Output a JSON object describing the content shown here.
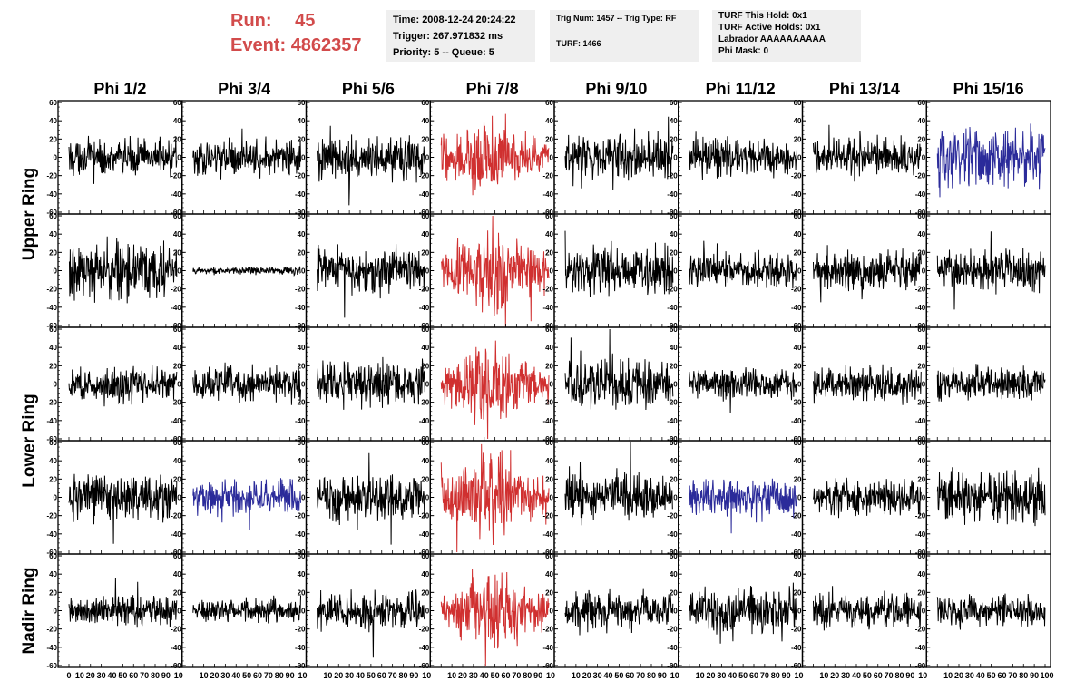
{
  "header": {
    "run_label": "Run:",
    "run_value": "45",
    "event_label": "Event:",
    "event_value": "4862357",
    "box1": [
      "Time: 2008-12-24 20:24:22",
      "Trigger: 267.971832 ms",
      "Priority: 5 -- Queue: 5"
    ],
    "box2_top": "Trig Num: 1457 -- Trig Type: RF",
    "box2_bottom": "TURF: 1466",
    "box3": [
      "TURF This Hold: 0x1",
      "TURF Active Holds: 0x1",
      "Labrador AAAAAAAAAA",
      "Phi Mask: 0"
    ]
  },
  "colors": {
    "black": "#000000",
    "red": "#d03030",
    "blue": "#2b2b9a",
    "title_red": "#d24b4b"
  },
  "chart_data": {
    "type": "line",
    "columns": [
      "Phi 1/2",
      "Phi 3/4",
      "Phi 5/6",
      "Phi 7/8",
      "Phi 9/10",
      "Phi 11/12",
      "Phi 13/14",
      "Phi 15/16"
    ],
    "row_labels": [
      "Upper Ring",
      "Lower Ring",
      "Nadir Ring"
    ],
    "yticks": [
      -60,
      -40,
      -20,
      0,
      20,
      40,
      60
    ],
    "ylim": [
      -62,
      62
    ],
    "xlim": [
      0,
      100
    ],
    "xtick_labels_panel": [
      "0",
      "10",
      "20",
      "30",
      "40",
      "50",
      "60",
      "70",
      "80",
      "90"
    ],
    "xtick_labels_first": "10",
    "xtick_labels_last": "100",
    "n_samples": 260,
    "panel_rows": [
      {
        "colors": [
          "black",
          "black",
          "black",
          "red",
          "black",
          "black",
          "black",
          "blue"
        ],
        "amplitudes": [
          9,
          9,
          11,
          15,
          12,
          10,
          10,
          16
        ]
      },
      {
        "colors": [
          "black",
          "black",
          "black",
          "red",
          "black",
          "black",
          "black",
          "black"
        ],
        "amplitudes": [
          14,
          2,
          12,
          17,
          13,
          9,
          10,
          10
        ]
      },
      {
        "colors": [
          "black",
          "black",
          "black",
          "red",
          "black",
          "black",
          "black",
          "black"
        ],
        "amplitudes": [
          9,
          9,
          11,
          15,
          13,
          8,
          9,
          9
        ]
      },
      {
        "colors": [
          "black",
          "blue",
          "black",
          "red",
          "black",
          "blue",
          "black",
          "black"
        ],
        "amplitudes": [
          12,
          9,
          12,
          17,
          11,
          9,
          9,
          13
        ]
      },
      {
        "colors": [
          "black",
          "black",
          "black",
          "red",
          "black",
          "black",
          "black",
          "black"
        ],
        "amplitudes": [
          8,
          6,
          9,
          15,
          9,
          12,
          9,
          8
        ]
      }
    ]
  }
}
